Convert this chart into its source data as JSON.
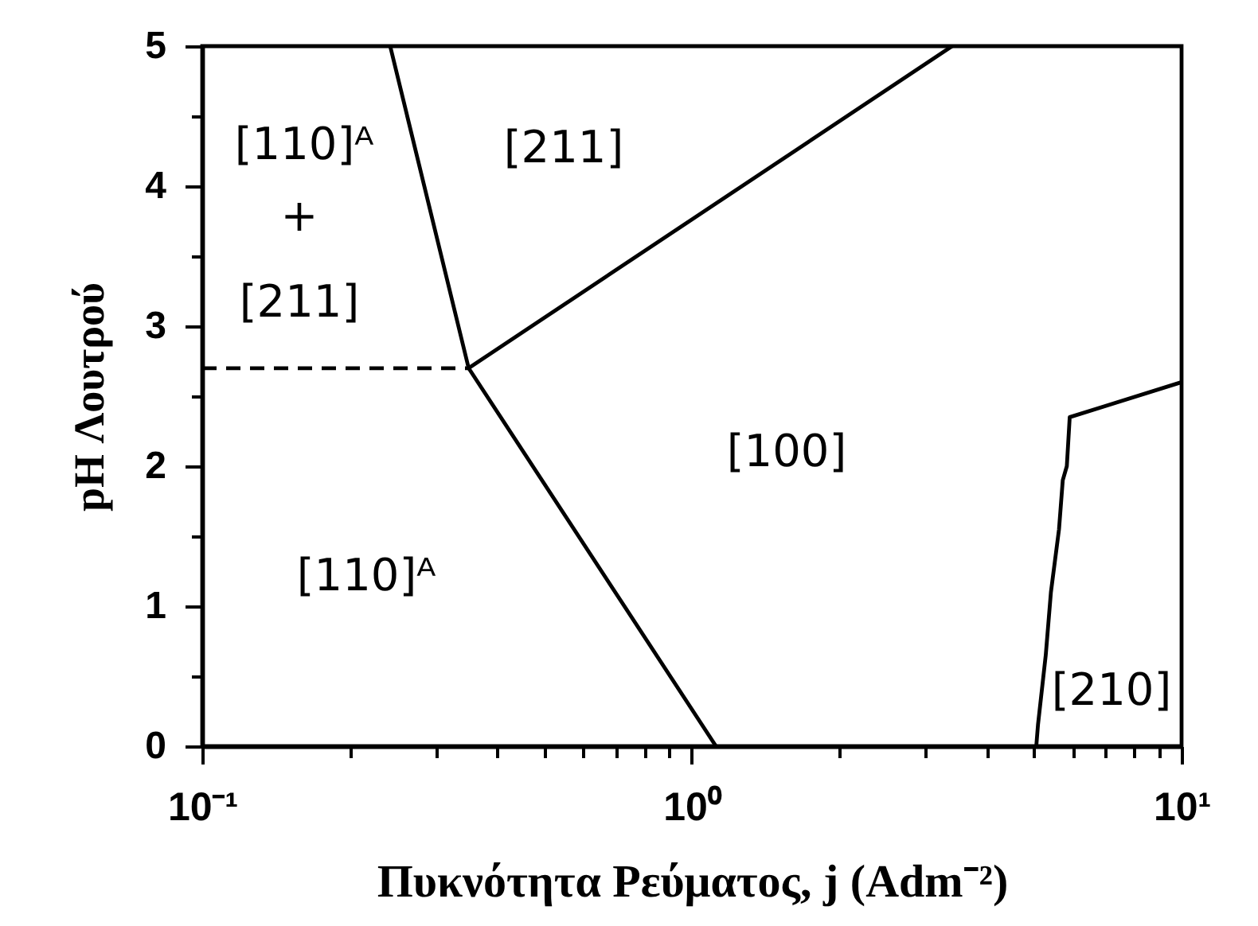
{
  "chart_data": {
    "type": "line",
    "xlabel": "Πυκνότητα Ρεύματος, j (Adm⁻²)",
    "ylabel": "pH Λουτρού",
    "log": "x",
    "line_style": "solid",
    "xlim": [
      0.1,
      10
    ],
    "ylim": [
      0,
      5
    ],
    "xticks": [
      {
        "value": 0.1,
        "label": "10⁻¹"
      },
      {
        "value": 0.2,
        "label": null
      },
      {
        "value": 0.3,
        "label": null
      },
      {
        "value": 0.4,
        "label": null
      },
      {
        "value": 0.5,
        "label": null
      },
      {
        "value": 0.6,
        "label": null
      },
      {
        "value": 0.7,
        "label": null
      },
      {
        "value": 0.8,
        "label": null
      },
      {
        "value": 0.9,
        "label": null
      },
      {
        "value": 1,
        "label": "10⁰"
      },
      {
        "value": 2,
        "label": null
      },
      {
        "value": 3,
        "label": null
      },
      {
        "value": 4,
        "label": null
      },
      {
        "value": 5,
        "label": null
      },
      {
        "value": 6,
        "label": null
      },
      {
        "value": 7,
        "label": null
      },
      {
        "value": 8,
        "label": null
      },
      {
        "value": 9,
        "label": null
      },
      {
        "value": 10,
        "label": "10¹"
      }
    ],
    "yticks": [
      0,
      {
        "value": 0.5,
        "label": null
      },
      1,
      {
        "value": 1.5,
        "label": null
      },
      2,
      {
        "value": 2.5,
        "label": null
      },
      3,
      {
        "value": 3.5,
        "label": null
      },
      4,
      {
        "value": 4.5,
        "label": null
      },
      5
    ],
    "series": [
      {
        "color": "#000000",
        "x": [
          0.242,
          0.35,
          1.12
        ],
        "values": [
          5,
          2.7,
          0
        ]
      },
      {
        "color": "#000000",
        "x": [
          0.35,
          3.4
        ],
        "values": [
          2.7,
          5
        ]
      },
      {
        "color": "#000000",
        "x": [
          0.1,
          0.35
        ],
        "values": [
          2.7,
          2.7
        ],
        "line_style": "dashed"
      },
      {
        "color": "#000000",
        "x": [
          5.05,
          5.09,
          5.28,
          5.41,
          5.62,
          5.72,
          5.83,
          5.91,
          10
        ],
        "values": [
          0,
          0.15,
          0.65,
          1.1,
          1.55,
          1.9,
          2.0,
          2.35,
          2.6
        ]
      }
    ],
    "annotations": [
      "[110]ᴬ",
      "+",
      "[211]",
      "[211]",
      "[100]",
      "[110]ᴬ",
      "[210]"
    ]
  }
}
